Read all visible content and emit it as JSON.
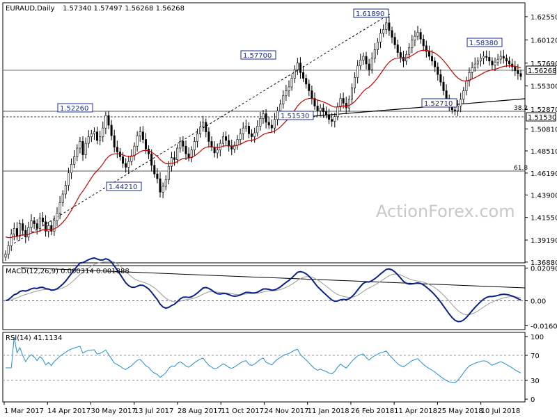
{
  "chart_data": [
    {
      "type": "candlestick",
      "title": "EURAUD,Daily",
      "ohlc_label": "1.57340 1.57497 1.56268 1.56268",
      "ylim": [
        1.368,
        1.64
      ],
      "y_ticks": [
        "1.62550",
        "1.60120",
        "1.57690",
        "1.55300",
        "1.52870",
        "1.50810",
        "1.48510",
        "1.46190",
        "1.43900",
        "1.41550",
        "1.39190",
        "1.36880"
      ],
      "x_ticks": [
        "1 Mar 2017",
        "14 Apr 2017",
        "30 May 2017",
        "13 Jul 2017",
        "28 Aug 2017",
        "11 Oct 2017",
        "24 Nov 2017",
        "11 Jan 2018",
        "26 Feb 2018",
        "11 Apr 2018",
        "25 May 2018",
        "10 Jul 2018"
      ],
      "closes": [
        1.377,
        1.386,
        1.398,
        1.404,
        1.396,
        1.409,
        1.402,
        1.395,
        1.405,
        1.412,
        1.409,
        1.404,
        1.415,
        1.411,
        1.401,
        1.407,
        1.401,
        1.412,
        1.42,
        1.431,
        1.44,
        1.449,
        1.462,
        1.471,
        1.479,
        1.488,
        1.495,
        1.481,
        1.493,
        1.5,
        1.503,
        1.505,
        1.496,
        1.5,
        1.509,
        1.522,
        1.512,
        1.501,
        1.489,
        1.484,
        1.479,
        1.472,
        1.468,
        1.474,
        1.48,
        1.49,
        1.501,
        1.505,
        1.497,
        1.487,
        1.482,
        1.47,
        1.461,
        1.456,
        1.442,
        1.448,
        1.455,
        1.469,
        1.478,
        1.476,
        1.488,
        1.495,
        1.49,
        1.482,
        1.478,
        1.486,
        1.495,
        1.503,
        1.51,
        1.515,
        1.505,
        1.495,
        1.489,
        1.483,
        1.486,
        1.493,
        1.5,
        1.496,
        1.49,
        1.487,
        1.491,
        1.497,
        1.503,
        1.509,
        1.511,
        1.503,
        1.5,
        1.504,
        1.511,
        1.519,
        1.524,
        1.515,
        1.512,
        1.509,
        1.518,
        1.527,
        1.534,
        1.543,
        1.548,
        1.552,
        1.561,
        1.57,
        1.577,
        1.567,
        1.561,
        1.555,
        1.548,
        1.54,
        1.532,
        1.527,
        1.53,
        1.526,
        1.523,
        1.518,
        1.516,
        1.521,
        1.531,
        1.54,
        1.535,
        1.53,
        1.539,
        1.551,
        1.562,
        1.574,
        1.58,
        1.584,
        1.576,
        1.57,
        1.582,
        1.591,
        1.599,
        1.608,
        1.612,
        1.619,
        1.611,
        1.604,
        1.596,
        1.588,
        1.583,
        1.579,
        1.586,
        1.593,
        1.601,
        1.605,
        1.609,
        1.602,
        1.595,
        1.589,
        1.584,
        1.579,
        1.573,
        1.565,
        1.557,
        1.548,
        1.54,
        1.533,
        1.528,
        1.527,
        1.532,
        1.539,
        1.548,
        1.558,
        1.567,
        1.572,
        1.576,
        1.579,
        1.582,
        1.584,
        1.583,
        1.579,
        1.575,
        1.578,
        1.581,
        1.584,
        1.582,
        1.579,
        1.576,
        1.573,
        1.569,
        1.566,
        1.563
      ],
      "ema_period": 21,
      "ema_color": "#cc0000",
      "candle_color": "#000000",
      "current_price_label": "1.56268",
      "level_label": "1.51530",
      "annotations": [
        "1.52260",
        "1.57700",
        "1.61890",
        "1.58380",
        "1.51530",
        "1.52710",
        "1.44210"
      ],
      "fib_labels": [
        "38.2",
        "61.8"
      ],
      "watermark": "ActionForex.com"
    },
    {
      "type": "line",
      "title": "MACD(12,26,9) 0.000314 0.001888",
      "y_ticks": [
        "0.020904",
        "0.00",
        "-0.016023"
      ],
      "ylim": [
        -0.0185,
        0.0225
      ],
      "series": [
        {
          "color": "#0b1f8a"
        },
        {
          "color": "#999999"
        }
      ]
    },
    {
      "type": "line",
      "title": "RSI(14) 41.1134",
      "y_ticks": [
        "100",
        "70",
        "30",
        "0"
      ],
      "ylim": [
        0,
        100
      ],
      "series": [
        {
          "color": "#1c8fd6"
        }
      ]
    }
  ]
}
